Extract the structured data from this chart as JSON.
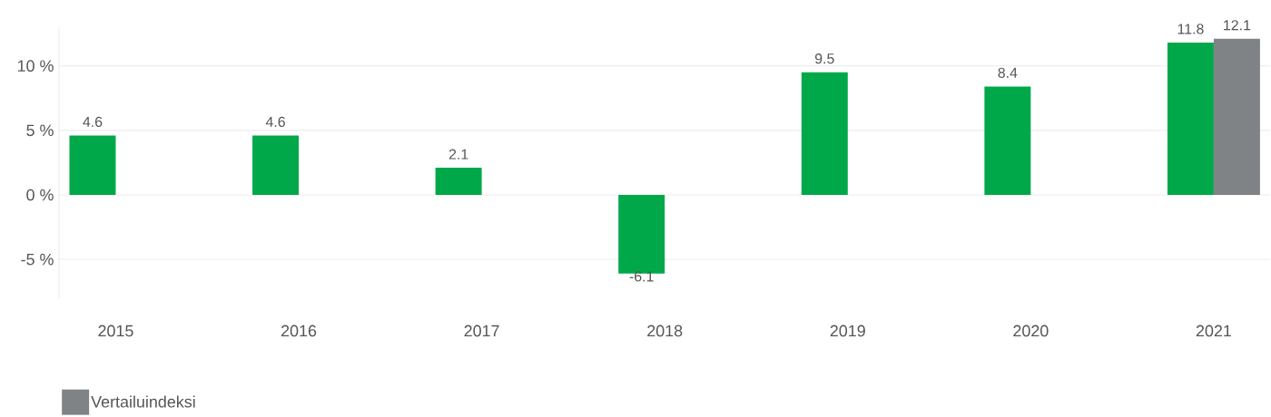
{
  "chart_data": {
    "type": "bar",
    "categories": [
      "2015",
      "2016",
      "2017",
      "2018",
      "2019",
      "2020",
      "2021"
    ],
    "series": [
      {
        "color": "#00a84a",
        "values": [
          4.6,
          4.6,
          2.1,
          -6.1,
          9.5,
          8.4,
          11.8
        ]
      },
      {
        "name": "Vertailuindeksi",
        "color": "#7f8386",
        "values": [
          null,
          null,
          null,
          null,
          null,
          null,
          12.1
        ]
      }
    ],
    "ylim": [
      -8,
      13
    ],
    "yticks": [
      {
        "value": -5,
        "label": "-5 %"
      },
      {
        "value": 0,
        "label": "0 %"
      },
      {
        "value": 5,
        "label": "5 %"
      },
      {
        "value": 10,
        "label": "10 %"
      }
    ],
    "grid": "y",
    "data_labels": true,
    "legend": "bottom left"
  }
}
